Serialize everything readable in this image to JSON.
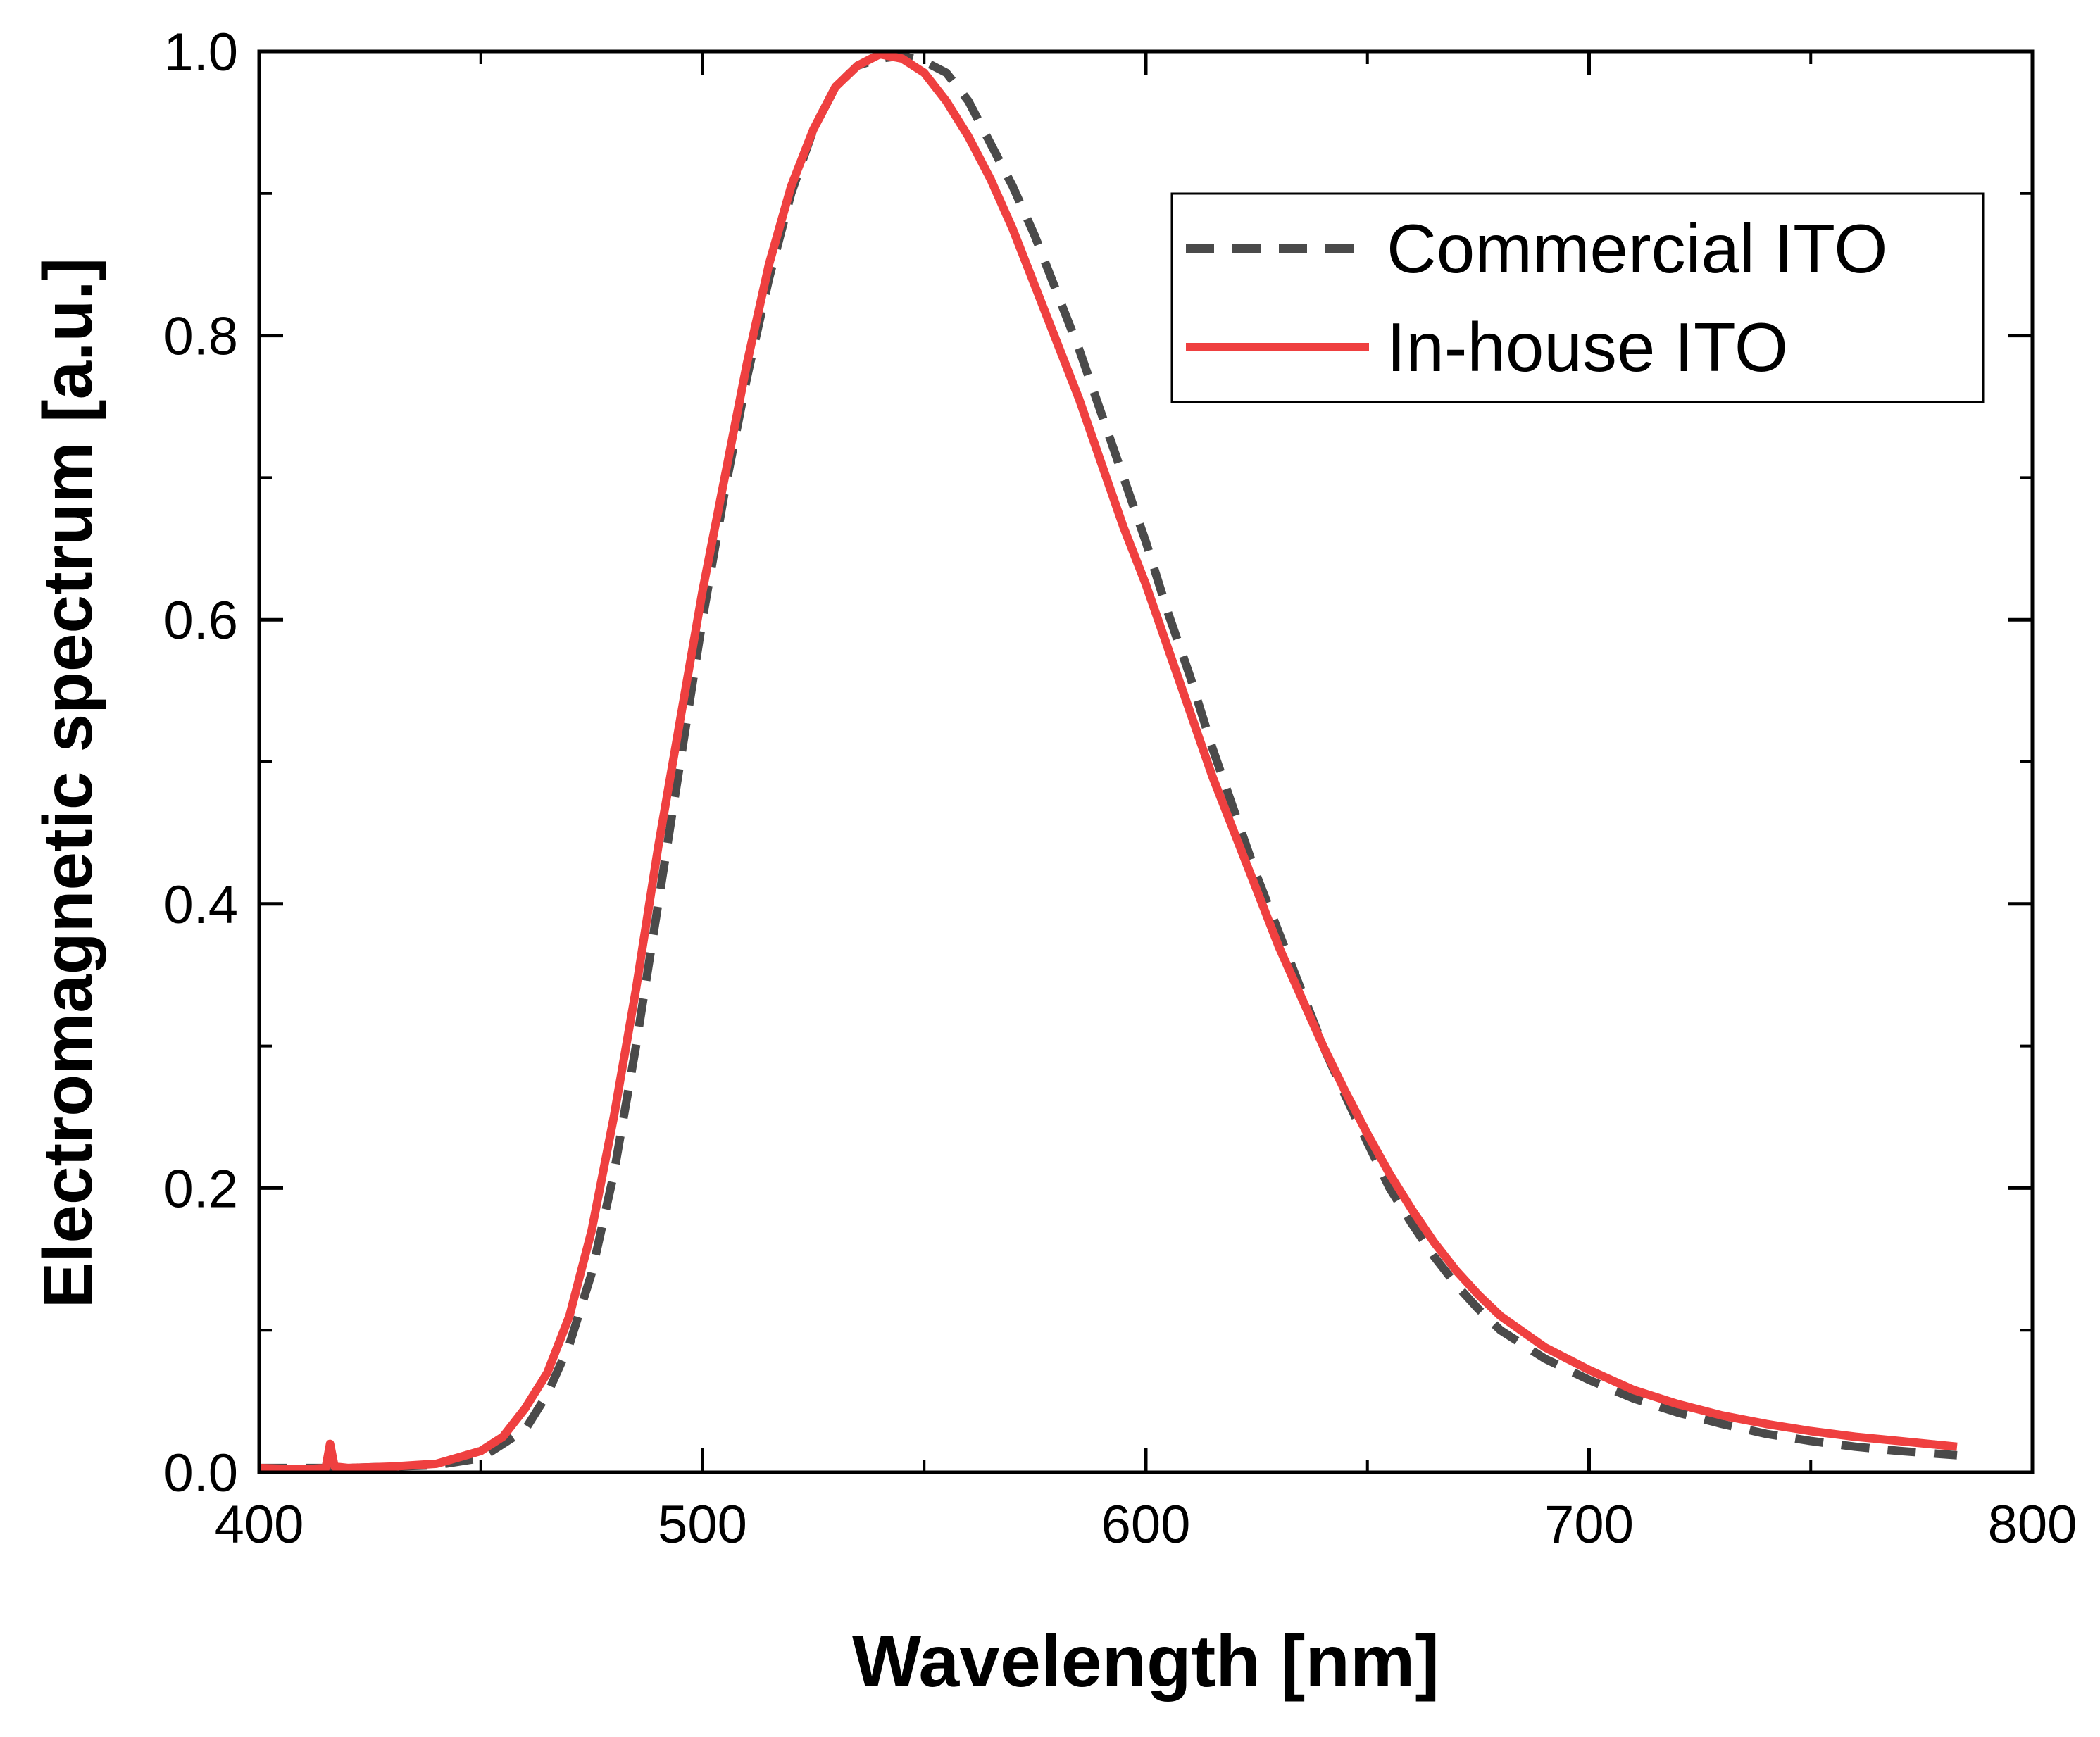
{
  "chart_data": {
    "type": "line",
    "title": "",
    "xlabel": "Wavelength [nm]",
    "ylabel": "Electromagnetic spectrum [a.u.]",
    "xlim": [
      400,
      800
    ],
    "ylim": [
      0.0,
      1.0
    ],
    "x_ticks": [
      400,
      500,
      600,
      700,
      800
    ],
    "x_tick_labels": [
      "400",
      "500",
      "600",
      "700",
      "800"
    ],
    "y_ticks": [
      0.0,
      0.2,
      0.4,
      0.6,
      0.8,
      1.0
    ],
    "y_tick_labels": [
      "0.0",
      "0.2",
      "0.4",
      "0.6",
      "0.8",
      "1.0"
    ],
    "grid": false,
    "legend_position": "top-right",
    "series": [
      {
        "name": "Commercial ITO",
        "color": "#4a4a4a",
        "line_style": "dashed",
        "x": [
          400,
          420,
          440,
          450,
          460,
          465,
          470,
          475,
          480,
          485,
          490,
          495,
          500,
          505,
          510,
          515,
          520,
          525,
          530,
          535,
          540,
          545,
          550,
          555,
          560,
          565,
          570,
          575,
          580,
          585,
          590,
          595,
          600,
          605,
          610,
          615,
          620,
          625,
          630,
          635,
          640,
          645,
          650,
          655,
          660,
          665,
          670,
          675,
          680,
          690,
          700,
          710,
          720,
          730,
          740,
          750,
          760,
          770,
          783
        ],
        "y": [
          0.003,
          0.003,
          0.005,
          0.01,
          0.03,
          0.055,
          0.09,
          0.14,
          0.21,
          0.3,
          0.4,
          0.5,
          0.6,
          0.69,
          0.77,
          0.84,
          0.9,
          0.945,
          0.975,
          0.99,
          0.995,
          0.997,
          0.993,
          0.985,
          0.965,
          0.935,
          0.905,
          0.87,
          0.83,
          0.79,
          0.745,
          0.7,
          0.655,
          0.605,
          0.56,
          0.51,
          0.465,
          0.42,
          0.38,
          0.34,
          0.3,
          0.265,
          0.232,
          0.2,
          0.175,
          0.152,
          0.132,
          0.115,
          0.1,
          0.08,
          0.065,
          0.052,
          0.042,
          0.034,
          0.027,
          0.022,
          0.018,
          0.015,
          0.012
        ]
      },
      {
        "name": "In-house ITO",
        "color": "#ef4040",
        "line_style": "solid",
        "x": [
          400,
          410,
          415,
          416,
          417,
          420,
          430,
          440,
          450,
          455,
          460,
          465,
          470,
          475,
          480,
          485,
          490,
          495,
          500,
          505,
          510,
          515,
          520,
          525,
          530,
          535,
          540,
          545,
          550,
          555,
          560,
          565,
          570,
          575,
          580,
          585,
          590,
          595,
          600,
          605,
          610,
          615,
          620,
          625,
          630,
          635,
          640,
          645,
          650,
          655,
          660,
          665,
          670,
          675,
          680,
          690,
          700,
          710,
          720,
          730,
          740,
          750,
          760,
          770,
          783
        ],
        "y": [
          0.003,
          0.002,
          0.003,
          0.02,
          0.004,
          0.003,
          0.004,
          0.006,
          0.015,
          0.025,
          0.045,
          0.07,
          0.11,
          0.17,
          0.25,
          0.34,
          0.44,
          0.53,
          0.62,
          0.7,
          0.78,
          0.85,
          0.905,
          0.945,
          0.975,
          0.99,
          0.998,
          0.995,
          0.985,
          0.965,
          0.94,
          0.91,
          0.875,
          0.835,
          0.795,
          0.755,
          0.71,
          0.665,
          0.625,
          0.58,
          0.535,
          0.49,
          0.45,
          0.41,
          0.37,
          0.335,
          0.3,
          0.268,
          0.238,
          0.21,
          0.185,
          0.162,
          0.142,
          0.125,
          0.11,
          0.088,
          0.072,
          0.058,
          0.048,
          0.04,
          0.034,
          0.029,
          0.025,
          0.022,
          0.018
        ]
      }
    ]
  }
}
